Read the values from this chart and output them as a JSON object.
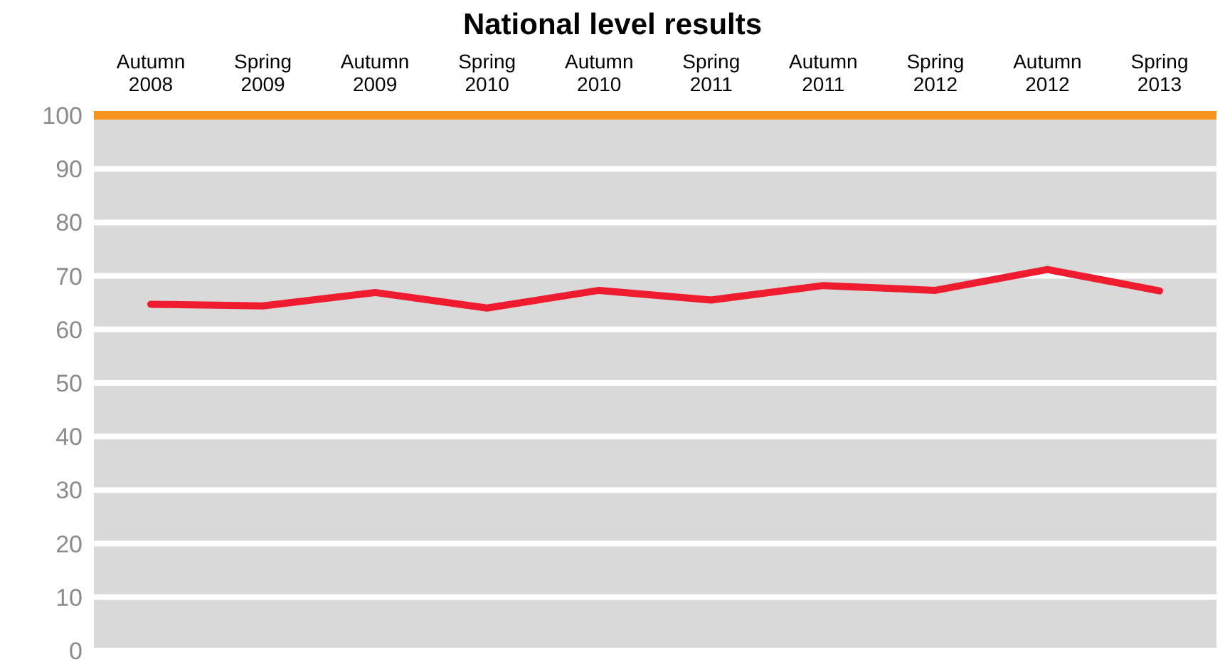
{
  "chart_data": {
    "type": "line",
    "title": "National level results",
    "categories": [
      "Autumn 2008",
      "Spring 2009",
      "Autumn 2009",
      "Spring 2010",
      "Autumn 2010",
      "Spring 2011",
      "Autumn 2011",
      "Spring 2012",
      "Autumn 2012",
      "Spring 2013"
    ],
    "series": [
      {
        "color": "#ee1c2e",
        "values": [
          64.7,
          64.4,
          66.9,
          64.0,
          67.3,
          65.5,
          68.2,
          67.3,
          71.2,
          67.2
        ]
      }
    ],
    "ylim": [
      0,
      100
    ],
    "yticks": [
      0,
      10,
      20,
      30,
      40,
      50,
      60,
      70,
      80,
      90,
      100
    ],
    "ref_lines": [
      {
        "axis": "y",
        "value": 100,
        "color": "#f7941d"
      }
    ],
    "grid": "y",
    "legend": false,
    "marker": "none",
    "line_style": "solid"
  }
}
